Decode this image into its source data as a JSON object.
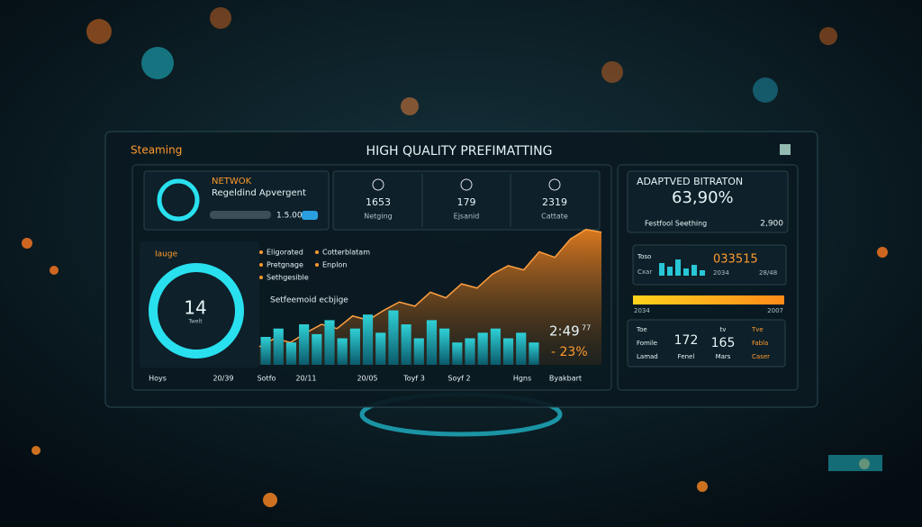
{
  "header": {
    "brand": "Steaming",
    "title": "HIGH QUALITY PREFIMATTING"
  },
  "network": {
    "title": "NETWOK",
    "subtitle": "Regeldind Apvergent",
    "value": "1.5.00"
  },
  "stats": [
    {
      "value": "1653",
      "label": "Netging"
    },
    {
      "value": "179",
      "label": "Ejsanid"
    },
    {
      "value": "2319",
      "label": "Cattate"
    }
  ],
  "gauge": {
    "title": "Iauge",
    "value": "14",
    "unit": "Twelt"
  },
  "legend": [
    "Eligorated",
    "Cotterblatam",
    "Pretgnage",
    "Enplon",
    "Sethgesible"
  ],
  "chart": {
    "title": "Setfeemoid ecbjige",
    "bars": [
      20,
      26,
      16,
      29,
      22,
      32,
      19,
      26,
      36,
      23,
      39,
      29,
      19,
      32,
      26,
      16,
      19,
      23,
      26,
      19,
      23,
      16
    ],
    "area": [
      13,
      19,
      16,
      23,
      29,
      26,
      35,
      32,
      39,
      45,
      42,
      52,
      48,
      58,
      55,
      65,
      71,
      68,
      81,
      77,
      90,
      97,
      95
    ],
    "time": "2:49",
    "time_suffix": "77",
    "change": "- 23%",
    "x_labels": [
      "Hoys",
      "20/39",
      "Sotfo",
      "20/11",
      "20/05",
      "Toyf 3",
      "Soyf 2",
      "Hgns",
      "Byakbart"
    ]
  },
  "bitrate": {
    "title": "ADAPTVED BITRATON",
    "value": "63,90%",
    "row_label": "Festfool Seething",
    "row_value": "2,900"
  },
  "mini": {
    "labels": [
      "Toso",
      "Cxar"
    ],
    "value": "033515",
    "sub": [
      "2034",
      "28/48"
    ],
    "bars": [
      14,
      10,
      18,
      8,
      12,
      6
    ]
  },
  "range": {
    "start": "2034",
    "end": "2007"
  },
  "bottom": {
    "col1": [
      "Toe",
      "Fomile",
      "Lamad"
    ],
    "col2": [
      "172",
      "Fenel"
    ],
    "col3": [
      "tv",
      "165",
      "Mars"
    ],
    "col4": [
      "Tve",
      "Fabla",
      "Caser"
    ]
  }
}
